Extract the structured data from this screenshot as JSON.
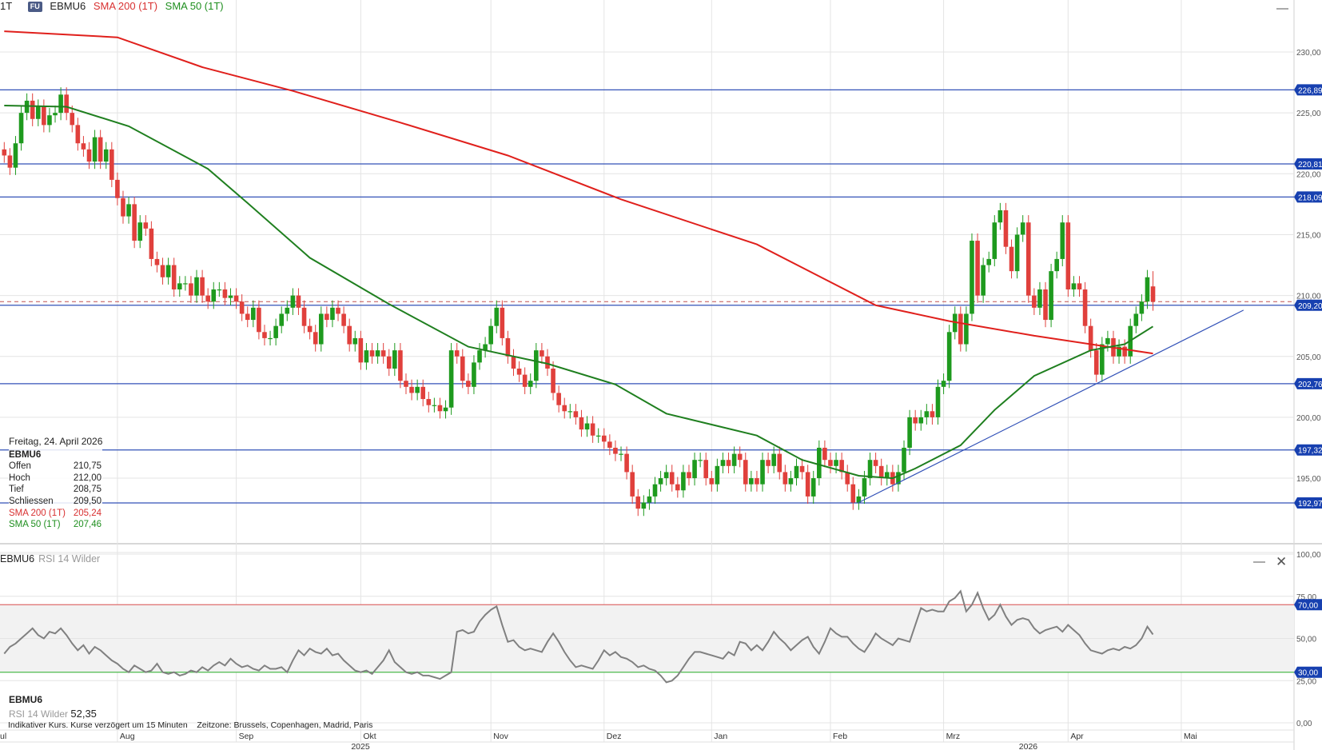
{
  "header": {
    "interval": "1T",
    "badge": "FU",
    "symbol": "EBMU6",
    "sma200_label": "SMA 200 (1T)",
    "sma50_label": "SMA 50 (1T)",
    "minimize_icon": "minus-icon"
  },
  "tooltip": {
    "date": "Freitag, 24. April 2026",
    "symbol": "EBMU6",
    "rows": [
      {
        "label": "Offen",
        "value": "210,75"
      },
      {
        "label": "Hoch",
        "value": "212,00"
      },
      {
        "label": "Tief",
        "value": "208,75"
      },
      {
        "label": "Schliessen",
        "value": "209,50"
      },
      {
        "label": "SMA 200 (1T)",
        "value": "205,24"
      },
      {
        "label": "SMA 50 (1T)",
        "value": "207,46"
      }
    ]
  },
  "rsi_panel": {
    "symbol": "EBMU6",
    "indicator": "RSI 14 Wilder",
    "legend_symbol": "EBMU6",
    "legend_label": "RSI 14 Wilder",
    "legend_value": "52,35",
    "minimize_icon": "minus-icon",
    "close_icon": "close-icon"
  },
  "footer": {
    "note": "Indikativer Kurs. Kurse verzögert um 15 Minuten",
    "timezone": "Zeitzone: Brussels, Copenhagen, Madrid, Paris"
  },
  "x_axis": {
    "months": [
      {
        "label": "ul",
        "date": "2025-07-01"
      },
      {
        "label": "Aug",
        "date": "2025-08-01"
      },
      {
        "label": "Sep",
        "date": "2025-09-01"
      },
      {
        "label": "Okt",
        "date": "2025-10-01"
      },
      {
        "label": "Nov",
        "date": "2025-11-03"
      },
      {
        "label": "Dez",
        "date": "2025-12-01"
      },
      {
        "label": "Jan",
        "date": "2026-01-02"
      },
      {
        "label": "Feb",
        "date": "2026-02-02"
      },
      {
        "label": "Mrz",
        "date": "2026-03-02"
      },
      {
        "label": "Apr",
        "date": "2026-04-01"
      },
      {
        "label": "Mai",
        "date": "2026-05-04"
      }
    ],
    "years": [
      {
        "label": "2025",
        "date": "2025-10-01"
      },
      {
        "label": "2026",
        "date": "2026-03-23"
      }
    ]
  },
  "colors": {
    "up": "#1e9a1e",
    "down": "#e0403c",
    "sma200": "#e0201c",
    "sma50": "#1f7f1f",
    "level_line": "#3352b8",
    "badge": "#1740b0",
    "rsi_line": "#808080",
    "rsi_upper": "#e07a7a",
    "rsi_lower": "#5cbf5c"
  },
  "chart_data": [
    {
      "type": "candlestick",
      "symbol": "EBMU6",
      "interval": "1T",
      "date_range": [
        "2025-07-04",
        "2026-04-24"
      ],
      "ylim": [
        190.5,
        234
      ],
      "y_ticks": [
        {
          "value": 230,
          "label": "230,00"
        },
        {
          "value": 225,
          "label": "225,00"
        },
        {
          "value": 220,
          "label": "220,00"
        },
        {
          "value": 215,
          "label": "215,00"
        },
        {
          "value": 210,
          "label": "210,00"
        },
        {
          "value": 205,
          "label": "205,00"
        },
        {
          "value": 200,
          "label": "200,00"
        },
        {
          "value": 195,
          "label": "195,00"
        }
      ],
      "grid": true,
      "close": [
        221.5,
        220.5,
        222.5,
        225,
        226,
        224.5,
        225.5,
        224,
        224.8,
        225,
        226.5,
        225,
        224,
        222.5,
        222,
        221,
        223,
        221,
        222,
        219.5,
        218,
        216.5,
        217.5,
        214.5,
        216,
        215.5,
        213,
        212.5,
        211.5,
        212.5,
        210.5,
        211,
        211,
        210,
        211.5,
        210,
        209.5,
        210.5,
        210.5,
        209.8,
        210,
        209.5,
        208.5,
        208,
        209,
        207,
        206.5,
        206.5,
        207.5,
        208.5,
        209,
        210,
        209,
        207.5,
        207,
        206,
        208.5,
        208,
        209,
        208.5,
        207.5,
        206,
        206.5,
        204.5,
        205.5,
        205,
        205.5,
        205,
        204,
        205.5,
        203,
        202.5,
        202,
        202.5,
        201.5,
        201,
        201,
        200.5,
        200.8,
        205.5,
        205,
        203,
        202.5,
        204.5,
        205.5,
        206,
        207.5,
        209,
        206.5,
        205,
        204,
        203.5,
        202.5,
        203,
        205.5,
        205,
        204,
        202,
        201,
        200.5,
        200.5,
        200,
        199,
        199.5,
        198.5,
        198.5,
        198,
        197.5,
        197,
        197,
        195.5,
        193.5,
        192.5,
        193,
        193.5,
        194.5,
        195,
        195.5,
        194.5,
        194,
        195.5,
        195,
        196.5,
        196.5,
        195,
        194.5,
        196,
        196.5,
        196,
        197,
        196.5,
        194.5,
        195,
        194.5,
        196.5,
        196,
        197,
        195.5,
        194.5,
        195,
        196,
        195.5,
        193.5,
        195,
        197.5,
        196.5,
        196,
        196.5,
        195.5,
        194.5,
        193,
        193.5,
        195,
        196.5,
        196,
        195,
        195.5,
        194.5,
        195.5,
        197.5,
        200,
        199.5,
        200,
        200.5,
        200,
        202.5,
        203,
        207,
        208.5,
        206,
        208.5,
        214.5,
        210,
        212.5,
        213,
        216,
        217,
        214,
        212,
        215,
        216,
        210,
        209,
        210.5,
        208,
        212,
        213,
        216,
        210.5,
        211,
        210.5,
        207.5,
        205.5,
        203.5,
        206,
        206.5,
        205,
        205.8,
        205,
        207.5,
        208.5,
        209.5,
        211.5,
        209.5
      ],
      "last_candle": {
        "date": "2026-04-24",
        "open": 210.75,
        "high": 212.0,
        "low": 208.75,
        "close": 209.5
      },
      "last_price": 209.5,
      "series": [
        {
          "name": "SMA 200 (1T)",
          "points": [
            [
              "2025-07-04",
              231.7
            ],
            [
              "2025-08-01",
              231.2
            ],
            [
              "2025-08-22",
              228.75
            ],
            [
              "2025-09-15",
              226.8
            ],
            [
              "2025-10-10",
              224.2
            ],
            [
              "2025-11-06",
              221.5
            ],
            [
              "2025-12-04",
              217.9
            ],
            [
              "2026-01-14",
              214.2
            ],
            [
              "2026-02-12",
              209.2
            ],
            [
              "2026-03-03",
              207.9
            ],
            [
              "2026-03-24",
              206.7
            ],
            [
              "2026-04-24",
              205.24
            ]
          ]
        },
        {
          "name": "SMA 50 (1T)",
          "points": [
            [
              "2025-07-04",
              225.6
            ],
            [
              "2025-07-21",
              225.5
            ],
            [
              "2025-08-05",
              223.9
            ],
            [
              "2025-08-25",
              220.4
            ],
            [
              "2025-09-03",
              217.6
            ],
            [
              "2025-09-18",
              213.1
            ],
            [
              "2025-10-08",
              209.3
            ],
            [
              "2025-10-28",
              205.8
            ],
            [
              "2025-11-17",
              204.4
            ],
            [
              "2025-12-03",
              202.7
            ],
            [
              "2025-12-16",
              200.3
            ],
            [
              "2026-01-14",
              198.5
            ],
            [
              "2026-01-26",
              196.5
            ],
            [
              "2026-02-09",
              195.2
            ],
            [
              "2026-02-17",
              195.0
            ],
            [
              "2026-02-23",
              195.8
            ],
            [
              "2026-03-05",
              197.7
            ],
            [
              "2026-03-13",
              200.6
            ],
            [
              "2026-03-24",
              203.4
            ],
            [
              "2026-04-09",
              205.5
            ],
            [
              "2026-04-17",
              206.0
            ],
            [
              "2026-04-24",
              207.46
            ]
          ]
        }
      ],
      "horizontal_levels": [
        {
          "value": 226.89,
          "label": "226,89"
        },
        {
          "value": 220.81,
          "label": "220,81"
        },
        {
          "value": 218.09,
          "label": "218,09"
        },
        {
          "value": 209.2,
          "label": "209,20"
        },
        {
          "value": 202.76,
          "label": "202,76"
        },
        {
          "value": 197.32,
          "label": "197,32"
        },
        {
          "value": 192.97,
          "label": "192,97"
        }
      ],
      "trendline": [
        [
          "2026-02-09",
          193.0
        ],
        [
          "2026-05-19",
          208.8
        ]
      ]
    },
    {
      "type": "line",
      "name": "RSI 14 Wilder",
      "ylim": [
        0,
        100
      ],
      "y_ticks": [
        {
          "value": 100,
          "label": "100,00"
        },
        {
          "value": 75,
          "label": "75,00"
        },
        {
          "value": 50,
          "label": "50,00"
        },
        {
          "value": 25,
          "label": "25,00"
        },
        {
          "value": 0,
          "label": "0,00"
        }
      ],
      "bands": [
        {
          "value": 70,
          "label": "70,00"
        },
        {
          "value": 30,
          "label": "30,00"
        }
      ],
      "values": [
        41,
        45,
        47,
        50,
        53,
        56,
        52,
        50,
        54,
        53,
        56,
        52,
        47,
        43,
        46,
        41,
        45,
        43,
        40,
        37,
        35,
        32,
        30,
        34,
        32,
        30,
        31,
        35,
        30,
        29,
        30,
        28,
        29,
        31,
        30,
        33,
        31,
        34,
        36,
        34,
        38,
        35,
        33,
        34,
        32,
        31,
        34,
        32,
        32,
        33,
        30,
        37,
        43,
        40,
        44,
        42,
        41,
        44,
        40,
        41,
        37,
        34,
        31,
        30,
        31,
        29,
        33,
        37,
        43,
        36,
        33,
        30,
        29,
        30,
        28,
        28,
        27,
        26,
        28,
        30,
        54,
        55,
        53,
        54,
        60,
        64,
        67,
        69,
        58,
        48,
        49,
        45,
        43,
        44,
        43,
        42,
        48,
        53,
        48,
        42,
        37,
        33,
        34,
        33,
        32,
        37,
        43,
        40,
        42,
        39,
        38,
        36,
        33,
        34,
        32,
        31,
        28,
        24,
        25,
        28,
        33,
        38,
        42,
        42,
        41,
        40,
        39,
        38,
        42,
        40,
        48,
        47,
        43,
        46,
        43,
        48,
        54,
        50,
        47,
        43,
        46,
        49,
        51,
        45,
        41,
        48,
        56,
        53,
        51,
        51,
        47,
        44,
        42,
        47,
        53,
        50,
        48,
        46,
        50,
        49,
        48,
        58,
        68,
        66,
        67,
        66,
        66,
        72,
        74,
        78,
        66,
        70,
        77,
        68,
        61,
        64,
        70,
        63,
        58,
        61,
        62,
        61,
        56,
        53,
        55,
        56,
        57,
        54,
        58,
        55,
        52,
        47,
        43,
        42,
        41,
        43,
        44,
        43,
        45,
        44,
        46,
        50,
        57,
        52.35
      ]
    }
  ]
}
